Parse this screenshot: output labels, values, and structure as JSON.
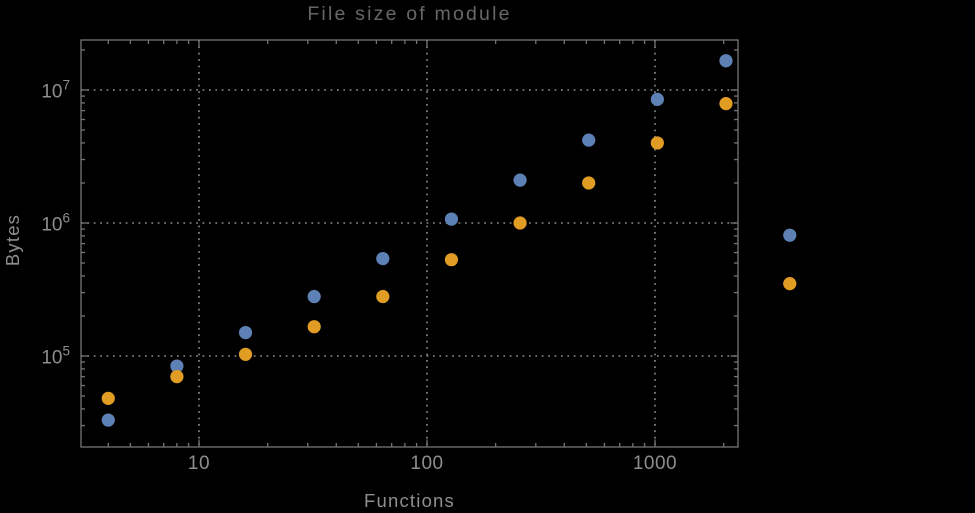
{
  "chart_data": {
    "type": "scatter",
    "title": "File size of module",
    "xlabel": "Functions",
    "ylabel": "Bytes",
    "xscale": "log",
    "yscale": "log",
    "xlim": [
      3.05,
      2320
    ],
    "ylim": [
      20700,
      23800000
    ],
    "x_major_ticks": [
      10,
      100,
      1000
    ],
    "x_tick_labels": [
      "10",
      "100",
      "1000"
    ],
    "y_major_ticks": [
      100000,
      1000000,
      10000000
    ],
    "y_tick_mantissa": "10",
    "y_tick_exponents": [
      "5",
      "6",
      "7"
    ],
    "grid": "dotted at major ticks",
    "legend": "none",
    "series": [
      {
        "name": "series-1",
        "color": "#5E81B5",
        "x": [
          4,
          8,
          16,
          32,
          64,
          128,
          256,
          512,
          1024,
          2048,
          3900
        ],
        "y": [
          33000,
          84000,
          150000,
          280000,
          540000,
          1070000,
          2100000,
          4200000,
          8500000,
          16600000,
          810000
        ]
      },
      {
        "name": "series-2",
        "color": "#E19C24",
        "x": [
          4,
          8,
          16,
          32,
          64,
          128,
          256,
          512,
          1024,
          2048,
          3900
        ],
        "y": [
          48000,
          70000,
          103000,
          166000,
          280000,
          530000,
          1000000,
          2000000,
          4000000,
          7900000,
          350000
        ]
      }
    ],
    "colors": {
      "background": "#000000",
      "frame": "#757575",
      "grid": "#909090",
      "tick_labels": "#8e8e8e",
      "axis_labels": "#8e8e8e",
      "title": "#676767"
    }
  }
}
